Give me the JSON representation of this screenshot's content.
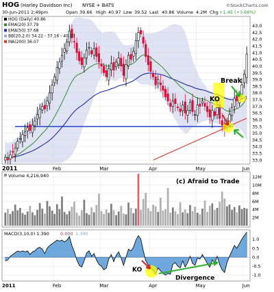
{
  "header": {
    "symbol": "HOG",
    "company": "(Harley Davidson Inc)",
    "exchange": "NYSE + BATS",
    "datetime": "30-Jun-2011 2:49pm",
    "open_label": "Open",
    "open": "39.66",
    "high_label": "High",
    "high": "40.97",
    "low_label": "Low",
    "low": "39.52",
    "last_label": "Last",
    "last": "40.86",
    "volume_label": "Volume",
    "volume": "4.2M",
    "chg_label": "Chg",
    "chg": "+1.45 (+3.68%)",
    "copyright": "©StockCharts.com"
  },
  "legend": [
    {
      "label": "HOG (Daily) 40.86",
      "color": "#000000"
    },
    {
      "label": "EMA(20) 37.79",
      "color": "#2e8b2e"
    },
    {
      "label": "EMA(50) 37.68",
      "color": "#1f2ea8"
    },
    {
      "label": "BB(20,2.0) 34.22 - 37.16 - 40.10",
      "color": "#9aa6d6"
    },
    {
      "label": "MA(200) 36.07",
      "color": "#d9362b"
    }
  ],
  "annotations": {
    "ko_top": "KO",
    "break": "Break",
    "ko_macd": "KO",
    "divergence": "Divergence",
    "afraid": "(c) Afraid to Trade"
  },
  "volume_legend": "Volume 4,216,940",
  "macd_legend": {
    "label": "MACD(3,10,0) 1.390",
    "v2": "0.000",
    "v3": "1.390"
  },
  "colors": {
    "up": "#000000",
    "down": "#d4133c",
    "ema20": "#2e8b2e",
    "ema50": "#1f2ea8",
    "ma200": "#d9362b",
    "bb": "#c8cdea",
    "support": "#2040d0",
    "macd": "#6fa8dc",
    "vol": "#8e8e8e",
    "vol_high": "#e06070",
    "highlight": "#ffff00",
    "arrow_green": "#2bb02b",
    "arrow_red": "#d42020"
  },
  "chart_data": [
    {
      "type": "candlestick",
      "name": "price",
      "y_ticks": [
        33.0,
        33.5,
        34.0,
        34.5,
        35.0,
        35.5,
        36.0,
        36.5,
        37.0,
        37.5,
        38.0,
        38.5,
        39.0,
        39.5,
        40.0,
        40.5,
        41.0,
        41.5,
        42.0,
        42.5,
        43.0
      ],
      "ylim": [
        32.8,
        43.6
      ],
      "x_labels": [
        "2011",
        "Feb",
        "Mar",
        "Apr",
        "May",
        "Jun"
      ],
      "close": [
        33.2,
        33.0,
        33.4,
        33.6,
        33.9,
        34.4,
        34.6,
        34.9,
        35.1,
        35.4,
        35.2,
        35.6,
        35.9,
        36.4,
        36.8,
        37.0,
        36.8,
        37.4,
        38.0,
        38.6,
        39.2,
        39.9,
        40.3,
        40.8,
        41.3,
        41.8,
        42.6,
        42.1,
        41.8,
        41.0,
        40.4,
        40.1,
        40.6,
        41.2,
        41.4,
        40.9,
        41.3,
        40.7,
        40.3,
        40.0,
        39.5,
        39.2,
        39.8,
        40.2,
        39.7,
        40.3,
        40.6,
        40.0,
        39.3,
        40.1,
        40.8,
        40.5,
        41.1,
        41.9,
        42.5,
        42.4,
        41.7,
        40.7,
        40.1,
        39.6,
        39.2,
        38.6,
        39.0,
        38.6,
        38.2,
        37.7,
        37.4,
        37.0,
        37.4,
        37.2,
        36.9,
        36.6,
        37.1,
        36.5,
        36.7,
        37.3,
        36.6,
        36.4,
        37.1,
        37.0,
        37.4,
        37.0,
        36.6,
        36.2,
        36.7,
        36.3,
        36.9,
        36.1,
        35.6,
        35.3,
        35.9,
        36.4,
        36.9,
        37.6,
        37.4,
        37.9,
        38.6,
        39.4,
        40.9
      ],
      "support_level": 35.5
    },
    {
      "type": "bar",
      "name": "volume",
      "y_ticks": [
        "2M",
        "4M",
        "6M",
        "8M",
        "10M",
        "12M"
      ],
      "ylim": [
        0,
        13000000
      ],
      "values": [
        3.2,
        4.1,
        2.9,
        3.6,
        5.2,
        3.8,
        4.4,
        3.1,
        2.7,
        3.5,
        4.9,
        3.3,
        2.6,
        3.9,
        5.6,
        4.2,
        3.0,
        6.1,
        4.8,
        3.7,
        2.9,
        5.3,
        4.1,
        7.2,
        3.4,
        2.8,
        3.6,
        4.7,
        5.9,
        3.2,
        2.5,
        3.8,
        6.4,
        3.1,
        2.7,
        4.5,
        3.3,
        5.1,
        7.9,
        3.6,
        2.9,
        4.0,
        3.2,
        5.4,
        3.8,
        2.6,
        3.5,
        4.9,
        3.0,
        2.8,
        5.7,
        4.4,
        3.1,
        4.2,
        12.8,
        3.9,
        6.6,
        8.1,
        4.3,
        3.6,
        5.2,
        4.8,
        3.4,
        6.9,
        3.7,
        4.1,
        9.3,
        3.2,
        4.5,
        3.6,
        2.9,
        5.8,
        3.3,
        4.0,
        3.1,
        5.1,
        3.6,
        4.7,
        3.2,
        2.8,
        4.2,
        6.2,
        3.4,
        4.9,
        5.5,
        3.9,
        4.4,
        5.9,
        8.4,
        6.7,
        4.8,
        5.2,
        3.9,
        4.6,
        3.3,
        5.0,
        4.1,
        4.4,
        4.2
      ]
    },
    {
      "type": "area",
      "name": "macd",
      "y_ticks": [
        -1.0,
        -0.5,
        0.0,
        0.5,
        1.0
      ],
      "ylim": [
        -1.25,
        1.45
      ],
      "values": [
        -0.2,
        -0.15,
        0.05,
        0.15,
        0.25,
        0.35,
        0.3,
        0.35,
        0.3,
        0.35,
        0.15,
        0.3,
        0.35,
        0.5,
        0.55,
        0.45,
        0.2,
        0.5,
        0.65,
        0.75,
        0.85,
        0.95,
        0.9,
        0.95,
        0.85,
        0.95,
        1.15,
        0.65,
        0.3,
        -0.15,
        -0.45,
        -0.55,
        -0.2,
        0.25,
        0.35,
        0.05,
        0.2,
        -0.15,
        -0.4,
        -0.5,
        -0.7,
        -0.6,
        -0.1,
        0.15,
        -0.25,
        0.1,
        0.3,
        -0.05,
        -0.45,
        0.0,
        0.45,
        0.35,
        0.55,
        0.95,
        1.2,
        1.0,
        0.35,
        -0.2,
        -0.45,
        -0.6,
        -0.75,
        -0.95,
        -0.6,
        -0.75,
        -0.9,
        -1.0,
        -0.9,
        -0.95,
        -0.4,
        -0.3,
        -0.5,
        -0.6,
        -0.2,
        -0.55,
        -0.3,
        0.05,
        -0.35,
        -0.45,
        -0.05,
        -0.1,
        0.15,
        -0.1,
        -0.35,
        -0.55,
        -0.15,
        -0.35,
        0.05,
        -0.4,
        -0.7,
        -0.85,
        -0.3,
        0.05,
        0.35,
        0.65,
        0.5,
        0.75,
        1.0,
        1.2,
        1.39
      ]
    }
  ]
}
